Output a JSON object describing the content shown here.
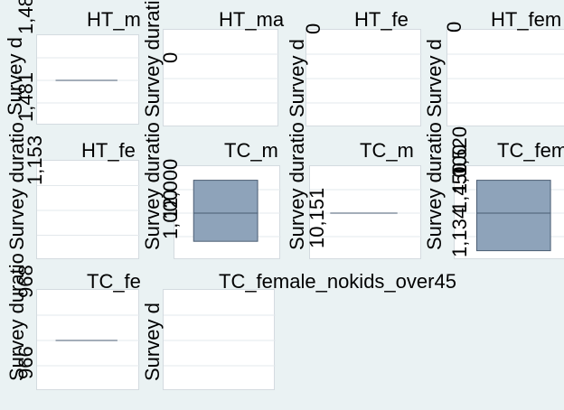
{
  "chart_data": [
    {
      "type": "box",
      "title": "HT_m",
      "ylabel": "Survey d",
      "ticks": [
        "1,481"
      ],
      "topTick": "1,48",
      "box": {
        "median": 1481,
        "q1": 1481,
        "q3": 1481
      },
      "ylim": [
        1478,
        1484
      ]
    },
    {
      "type": "box",
      "title": "HT_ma",
      "ylabel": "Survey duratio",
      "ticks": [
        "0"
      ],
      "box": null
    },
    {
      "type": "box",
      "title": "HT_fe",
      "ylabel": "Survey d",
      "ticks": [
        "0"
      ],
      "box": null
    },
    {
      "type": "box",
      "title": "HT_fem",
      "ylabel": "Survey d",
      "ticks": [
        "0"
      ],
      "box": null
    },
    {
      "type": "box",
      "title": "HT_fe",
      "ylabel": "Survey duratio",
      "ticks": [
        "1,153"
      ],
      "box": null
    },
    {
      "type": "box",
      "title": "TC_m",
      "ylabel": "Survey duratio",
      "ticks": [
        "12,000",
        "1,000"
      ],
      "box": {
        "median": 0.5,
        "q1": 0.2,
        "q3": 0.85
      },
      "ylim": [
        0,
        1
      ]
    },
    {
      "type": "box",
      "title": "TC_m",
      "ylabel": "Survey duratio",
      "ticks": [
        "10,151"
      ],
      "box": {
        "median": 10151,
        "q1": 10151,
        "q3": 10151
      },
      "ylim": [
        10148,
        10154
      ]
    },
    {
      "type": "box",
      "title": "TC_fem",
      "ylabel": "Survey duratio",
      "ticks": [
        "1,134",
        "1,450",
        "1,000",
        "1,520"
      ],
      "box": {
        "median": 0.5,
        "q1": 0.1,
        "q3": 0.85
      },
      "ylim": [
        0,
        1
      ]
    },
    {
      "type": "box",
      "title": "TC_fe",
      "ylabel": "Survey duratio",
      "ticks": [
        "966",
        "968"
      ],
      "box": {
        "median": 966,
        "q1": 966,
        "q3": 966
      },
      "ylim": [
        963,
        969
      ]
    },
    {
      "type": "box",
      "title": "TC_female_nokids_over45",
      "ylabel": "Survey d",
      "ticks": [],
      "box": null
    }
  ],
  "colors": {
    "box_fill": "#8ea3ba",
    "box_line": "#4a5d73",
    "median": "#4a5d73",
    "grid": "#e3e8ec",
    "bg": "#eaf2f3"
  }
}
